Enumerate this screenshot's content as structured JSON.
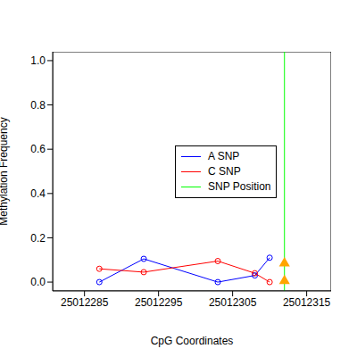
{
  "chart_data": {
    "type": "line",
    "x_label": "CpG Coordinates",
    "y_label": "Methylation Frequency",
    "xlim": [
      25012280.7,
      25012318.3
    ],
    "xticks": [
      25012285,
      25012295,
      25012305,
      25012315
    ],
    "ylim": [
      -0.04,
      1.04
    ],
    "yticks": [
      {
        "value": 0,
        "label": "0.0"
      },
      {
        "value": 0.2,
        "label": "0.2"
      },
      {
        "value": 0.4,
        "label": "0.4"
      },
      {
        "value": 0.6,
        "label": "0.6"
      },
      {
        "value": 0.8,
        "label": "0.8"
      },
      {
        "value": 1,
        "label": "1.0"
      }
    ],
    "legend": "right",
    "series": [
      {
        "name": "A SNP",
        "color": "#0000ff",
        "marker": "circle",
        "x": [
          25012287,
          25012293,
          25012303,
          25012308,
          25012310
        ],
        "values": [
          0.0,
          0.105,
          0.0,
          0.03,
          0.11
        ]
      },
      {
        "name": "C SNP",
        "color": "#ff0000",
        "marker": "circle",
        "x": [
          25012287,
          25012293,
          25012303,
          25012308,
          25012310
        ],
        "values": [
          0.06,
          0.045,
          0.095,
          0.04,
          0.0
        ]
      }
    ],
    "snp_position": {
      "name": "SNP Position",
      "color": "#00ff00",
      "x": 25012312
    },
    "snp_methylation": {
      "color": "#ffa500",
      "marker": "triangle",
      "values": [
        0.085,
        0.005
      ]
    }
  }
}
